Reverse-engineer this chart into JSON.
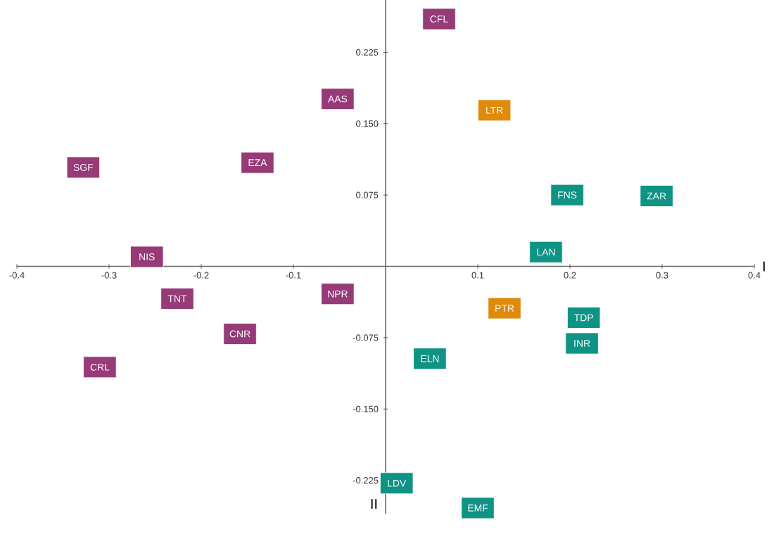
{
  "chart_data": {
    "type": "scatter",
    "xlabel": "I",
    "ylabel": "II",
    "marker": "square",
    "xlim": [
      -0.4,
      0.4
    ],
    "ylim": [
      -0.26,
      0.28
    ],
    "xticks": [
      -0.4,
      -0.3,
      -0.2,
      -0.1,
      0.1,
      0.2,
      0.3,
      0.4
    ],
    "yticks": [
      -0.225,
      {
        "value": -0.15,
        "label": "-0.150"
      },
      -0.075,
      0.075,
      {
        "value": 0.15,
        "label": "0.150"
      },
      0.225
    ],
    "series": [
      {
        "color": "#963a78",
        "x": [
          0.058,
          -0.052,
          -0.328,
          -0.139,
          -0.259,
          -0.226,
          -0.052,
          -0.158,
          -0.31
        ],
        "values": [
          0.26,
          0.176,
          0.104,
          0.109,
          0.01,
          -0.034,
          -0.029,
          -0.071,
          -0.106
        ]
      },
      {
        "color": "#e08a0b",
        "x": [
          0.118,
          0.129
        ],
        "values": [
          0.164,
          -0.044
        ]
      },
      {
        "color": "#0e9384",
        "x": [
          0.197,
          0.294,
          0.174,
          0.215,
          0.213,
          0.048,
          0.012,
          0.1
        ],
        "values": [
          0.075,
          0.074,
          0.015,
          -0.054,
          -0.081,
          -0.097,
          -0.228,
          -0.254
        ]
      }
    ],
    "annotations": [
      {
        "text": "CFL",
        "x": 0.058,
        "y": 0.26
      },
      {
        "text": "AAS",
        "x": -0.052,
        "y": 0.176
      },
      {
        "text": "SGF",
        "x": -0.328,
        "y": 0.104
      },
      {
        "text": "EZA",
        "x": -0.139,
        "y": 0.109
      },
      {
        "text": "NIS",
        "x": -0.259,
        "y": 0.01
      },
      {
        "text": "TNT",
        "x": -0.226,
        "y": -0.034
      },
      {
        "text": "NPR",
        "x": -0.052,
        "y": -0.029
      },
      {
        "text": "CNR",
        "x": -0.158,
        "y": -0.071
      },
      {
        "text": "CRL",
        "x": -0.31,
        "y": -0.106
      },
      {
        "text": "LTR",
        "x": 0.118,
        "y": 0.164
      },
      {
        "text": "PTR",
        "x": 0.129,
        "y": -0.044
      },
      {
        "text": "FNS",
        "x": 0.197,
        "y": 0.075
      },
      {
        "text": "ZAR",
        "x": 0.294,
        "y": 0.074
      },
      {
        "text": "LAN",
        "x": 0.174,
        "y": 0.015
      },
      {
        "text": "TDP",
        "x": 0.215,
        "y": -0.054
      },
      {
        "text": "INR",
        "x": 0.213,
        "y": -0.081
      },
      {
        "text": "ELN",
        "x": 0.048,
        "y": -0.097
      },
      {
        "text": "LDV",
        "x": 0.012,
        "y": -0.228
      },
      {
        "text": "EMF",
        "x": 0.1,
        "y": -0.254
      }
    ]
  }
}
